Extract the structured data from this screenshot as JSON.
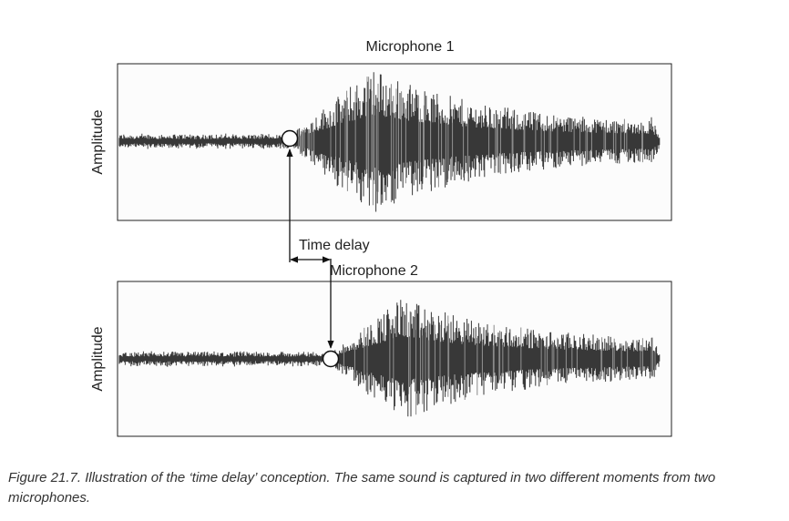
{
  "panels": [
    {
      "title": "Microphone 1",
      "y_label": "Amplitude"
    },
    {
      "title": "Microphone 2",
      "y_label": "Amplitude"
    }
  ],
  "annotation": "Time delay",
  "caption": "Figure 21.7. Illustration of the ‘time delay’ conception. The same sound is captured in two different moments from two microphones."
}
